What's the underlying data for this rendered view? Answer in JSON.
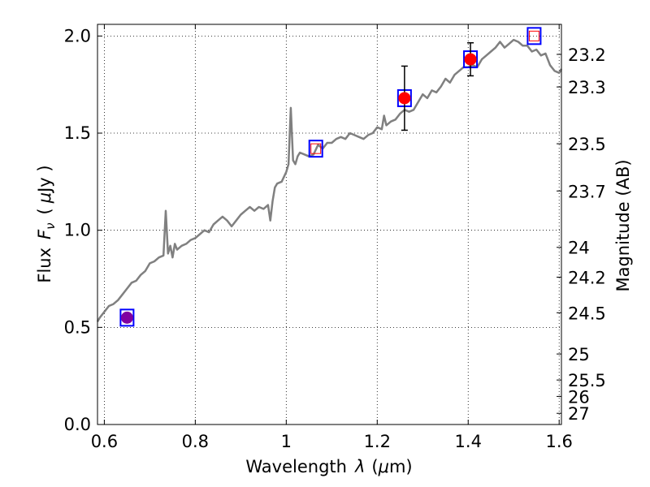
{
  "chart_data": {
    "type": "line",
    "xlabel_text": "Wavelength",
    "xlabel_symbol": "λ",
    "xlabel_unit_open": "(",
    "xlabel_unit_mu": "μ",
    "xlabel_unit_rest": "m)",
    "ylabel_text": "Flux",
    "ylabel_symbol": "F",
    "ylabel_sub": "ν",
    "ylabel_unit_open": "(",
    "ylabel_unit_mu": "μ",
    "ylabel_unit_rest": "Jy )",
    "y2label": "Magnitude (AB)",
    "xlim": [
      0.585,
      1.605
    ],
    "ylim": [
      0.0,
      2.06
    ],
    "grid": true,
    "x_ticks": [
      0.6,
      0.8,
      1.0,
      1.2,
      1.4,
      1.6
    ],
    "x_tick_labels": [
      "0.6",
      "0.8",
      "1",
      "1.2",
      "1.4",
      "1.6"
    ],
    "y_ticks": [
      0.0,
      0.5,
      1.0,
      1.5,
      2.0
    ],
    "y_tick_labels": [
      "0.0",
      "0.5",
      "1.0",
      "1.5",
      "2.0"
    ],
    "mag_ticks": [
      23.2,
      23.3,
      23.5,
      23.7,
      24,
      24.2,
      24.5,
      25,
      25.5,
      26,
      27
    ],
    "mag_tick_labels": [
      "23.2",
      "23.3",
      "23.5",
      "23.7",
      "24",
      "24.2",
      "24.5",
      "25",
      "25.5",
      "26",
      "27"
    ],
    "spectrum": {
      "color": "#808080",
      "x": [
        0.585,
        0.59,
        0.6,
        0.61,
        0.62,
        0.63,
        0.64,
        0.65,
        0.66,
        0.67,
        0.68,
        0.69,
        0.7,
        0.71,
        0.72,
        0.73,
        0.735,
        0.74,
        0.745,
        0.75,
        0.755,
        0.76,
        0.77,
        0.78,
        0.79,
        0.8,
        0.81,
        0.82,
        0.83,
        0.84,
        0.85,
        0.86,
        0.87,
        0.88,
        0.89,
        0.9,
        0.91,
        0.92,
        0.93,
        0.94,
        0.95,
        0.96,
        0.965,
        0.97,
        0.975,
        0.98,
        0.99,
        1.0,
        1.005,
        1.01,
        1.015,
        1.02,
        1.025,
        1.03,
        1.04,
        1.05,
        1.06,
        1.07,
        1.08,
        1.09,
        1.1,
        1.11,
        1.12,
        1.13,
        1.14,
        1.15,
        1.16,
        1.17,
        1.18,
        1.19,
        1.2,
        1.21,
        1.215,
        1.22,
        1.23,
        1.24,
        1.25,
        1.26,
        1.27,
        1.28,
        1.29,
        1.3,
        1.31,
        1.32,
        1.33,
        1.34,
        1.35,
        1.36,
        1.37,
        1.38,
        1.39,
        1.4,
        1.41,
        1.42,
        1.43,
        1.44,
        1.45,
        1.46,
        1.47,
        1.48,
        1.49,
        1.5,
        1.51,
        1.52,
        1.53,
        1.54,
        1.55,
        1.56,
        1.57,
        1.58,
        1.59,
        1.6,
        1.605
      ],
      "y": [
        0.53,
        0.55,
        0.58,
        0.61,
        0.62,
        0.64,
        0.67,
        0.7,
        0.73,
        0.74,
        0.77,
        0.79,
        0.83,
        0.84,
        0.86,
        0.87,
        1.1,
        0.88,
        0.92,
        0.86,
        0.93,
        0.9,
        0.92,
        0.93,
        0.95,
        0.96,
        0.98,
        1.0,
        0.99,
        1.03,
        1.05,
        1.07,
        1.05,
        1.02,
        1.05,
        1.08,
        1.1,
        1.12,
        1.1,
        1.12,
        1.11,
        1.13,
        1.05,
        1.15,
        1.22,
        1.24,
        1.25,
        1.3,
        1.34,
        1.63,
        1.36,
        1.34,
        1.38,
        1.4,
        1.39,
        1.38,
        1.39,
        1.44,
        1.42,
        1.45,
        1.45,
        1.47,
        1.48,
        1.47,
        1.5,
        1.49,
        1.48,
        1.47,
        1.49,
        1.5,
        1.53,
        1.52,
        1.59,
        1.54,
        1.56,
        1.57,
        1.6,
        1.62,
        1.61,
        1.62,
        1.66,
        1.7,
        1.68,
        1.72,
        1.71,
        1.74,
        1.78,
        1.76,
        1.8,
        1.82,
        1.84,
        1.84,
        1.85,
        1.84,
        1.88,
        1.9,
        1.92,
        1.94,
        1.97,
        1.94,
        1.96,
        1.98,
        1.97,
        1.95,
        1.95,
        1.92,
        1.93,
        1.9,
        1.91,
        1.85,
        1.82,
        1.81,
        1.83
      ]
    },
    "boxes": {
      "color": "#0000ff",
      "points": [
        {
          "x": 0.65,
          "y": 0.55
        },
        {
          "x": 1.065,
          "y": 1.42
        },
        {
          "x": 1.26,
          "y": 1.68
        },
        {
          "x": 1.405,
          "y": 1.88
        },
        {
          "x": 1.545,
          "y": 2.0
        }
      ]
    },
    "model_points": {
      "color": "#ff0000",
      "points": [
        {
          "x": 1.065,
          "y": 1.42
        },
        {
          "x": 1.545,
          "y": 2.0
        }
      ]
    },
    "measurements": {
      "color": "#ff0000",
      "error_color": "#000000",
      "points": [
        {
          "x": 1.26,
          "y": 1.68,
          "err": 0.165
        },
        {
          "x": 1.405,
          "y": 1.88,
          "err": 0.085
        }
      ]
    },
    "purple_point": {
      "color": "#8000a0",
      "x": 0.65,
      "y": 0.55,
      "err": 0.025
    }
  }
}
